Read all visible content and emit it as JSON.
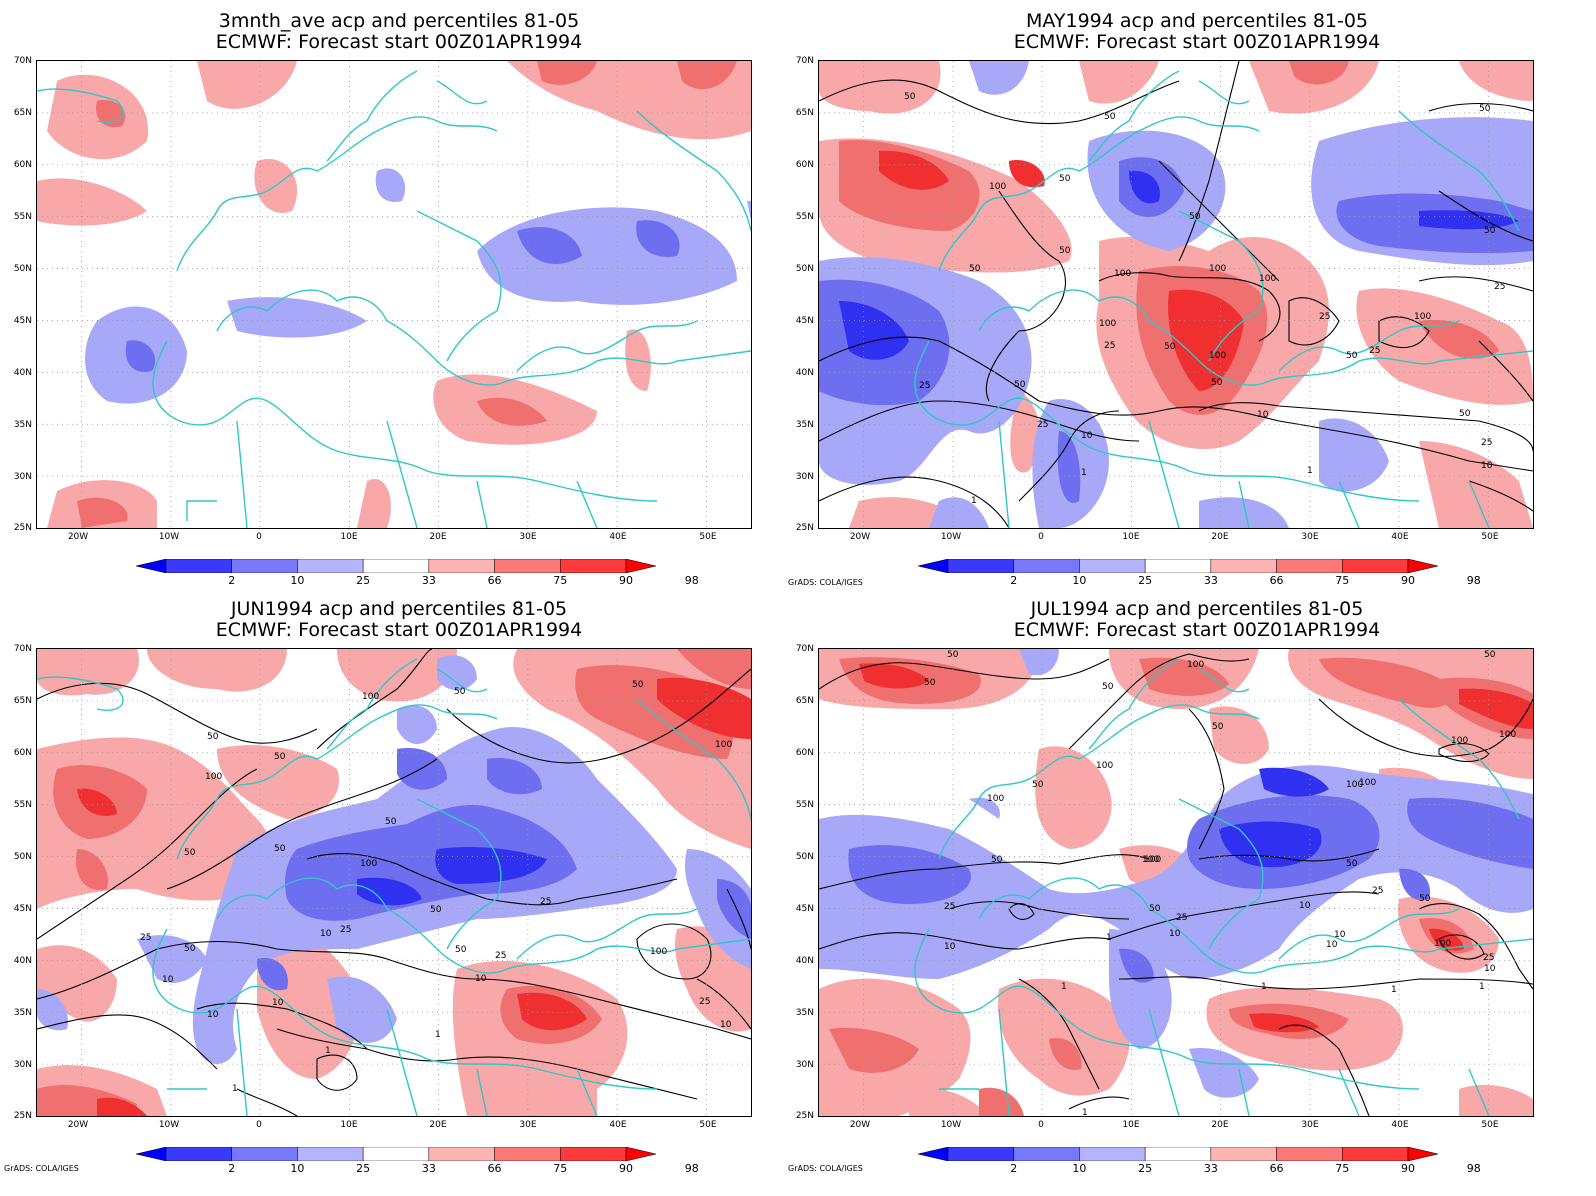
{
  "credit": "GrADS: COLA/IGES",
  "y_labels": [
    "70N",
    "65N",
    "60N",
    "55N",
    "50N",
    "45N",
    "40N",
    "35N",
    "30N",
    "25N"
  ],
  "x_labels": [
    "20W",
    "10W",
    "0",
    "10E",
    "20E",
    "30E",
    "40E",
    "50E"
  ],
  "colorbar": {
    "labels": [
      "2",
      "10",
      "25",
      "33",
      "66",
      "75",
      "90",
      "98"
    ],
    "colors": [
      "#0000ff",
      "#3a3aff",
      "#7878ff",
      "#b4b4ff",
      "#ffffff",
      "#ffb4b4",
      "#ff7878",
      "#ff3a3a",
      "#ff0000"
    ]
  },
  "colors": {
    "coast": "#2ec8c8",
    "contour": "#000000",
    "blue_light": "#a8a8f8",
    "blue_mid": "#6e6ef0",
    "blue_dark": "#3030f0",
    "red_light": "#f8a8a8",
    "red_mid": "#f07070",
    "red_dark": "#f03030"
  },
  "panels": [
    {
      "title1": "3mnth_ave acp and percentiles 81-05",
      "title2": "ECMWF: Forecast start 00Z01APR1994",
      "show_credit": false,
      "contour_labels": []
    },
    {
      "title1": "MAY1994 acp and percentiles 81-05",
      "title2": "ECMWF: Forecast start 00Z01APR1994",
      "show_credit": true,
      "contour_labels": [
        "50",
        "50",
        "50",
        "50",
        "50",
        "100",
        "50",
        "50",
        "50",
        "100",
        "100",
        "100",
        "100",
        "25",
        "100",
        "25",
        "50",
        "50",
        "100",
        "25",
        "50",
        "25",
        "50",
        "10",
        "25",
        "10",
        "1",
        "1",
        "25",
        "50",
        "10",
        "25",
        "1"
      ]
    },
    {
      "title1": "JUN1994 acp and percentiles 81-05",
      "title2": "ECMWF: Forecast start 00Z01APR1994",
      "show_credit": true,
      "contour_labels": [
        "50",
        "100",
        "50",
        "50",
        "100",
        "50",
        "50",
        "50",
        "100",
        "50",
        "50",
        "25",
        "25",
        "50",
        "10",
        "25",
        "10",
        "25",
        "50",
        "10",
        "10",
        "100",
        "10",
        "25",
        "10",
        "1",
        "1",
        "1",
        "100"
      ]
    },
    {
      "title1": "JUL1994 acp and percentiles 81-05",
      "title2": "ECMWF: Forecast start 00Z01APR1994",
      "show_credit": true,
      "contour_labels": [
        "50",
        "50",
        "100",
        "50",
        "50",
        "100",
        "50",
        "100",
        "100",
        "100",
        "100",
        "100",
        "50",
        "50",
        "25",
        "50",
        "25",
        "50",
        "10",
        "1",
        "10",
        "1",
        "10",
        "25",
        "10",
        "1",
        "1",
        "10",
        "100",
        "1",
        "25",
        "10",
        "1",
        "50",
        "100",
        "100"
      ]
    }
  ]
}
